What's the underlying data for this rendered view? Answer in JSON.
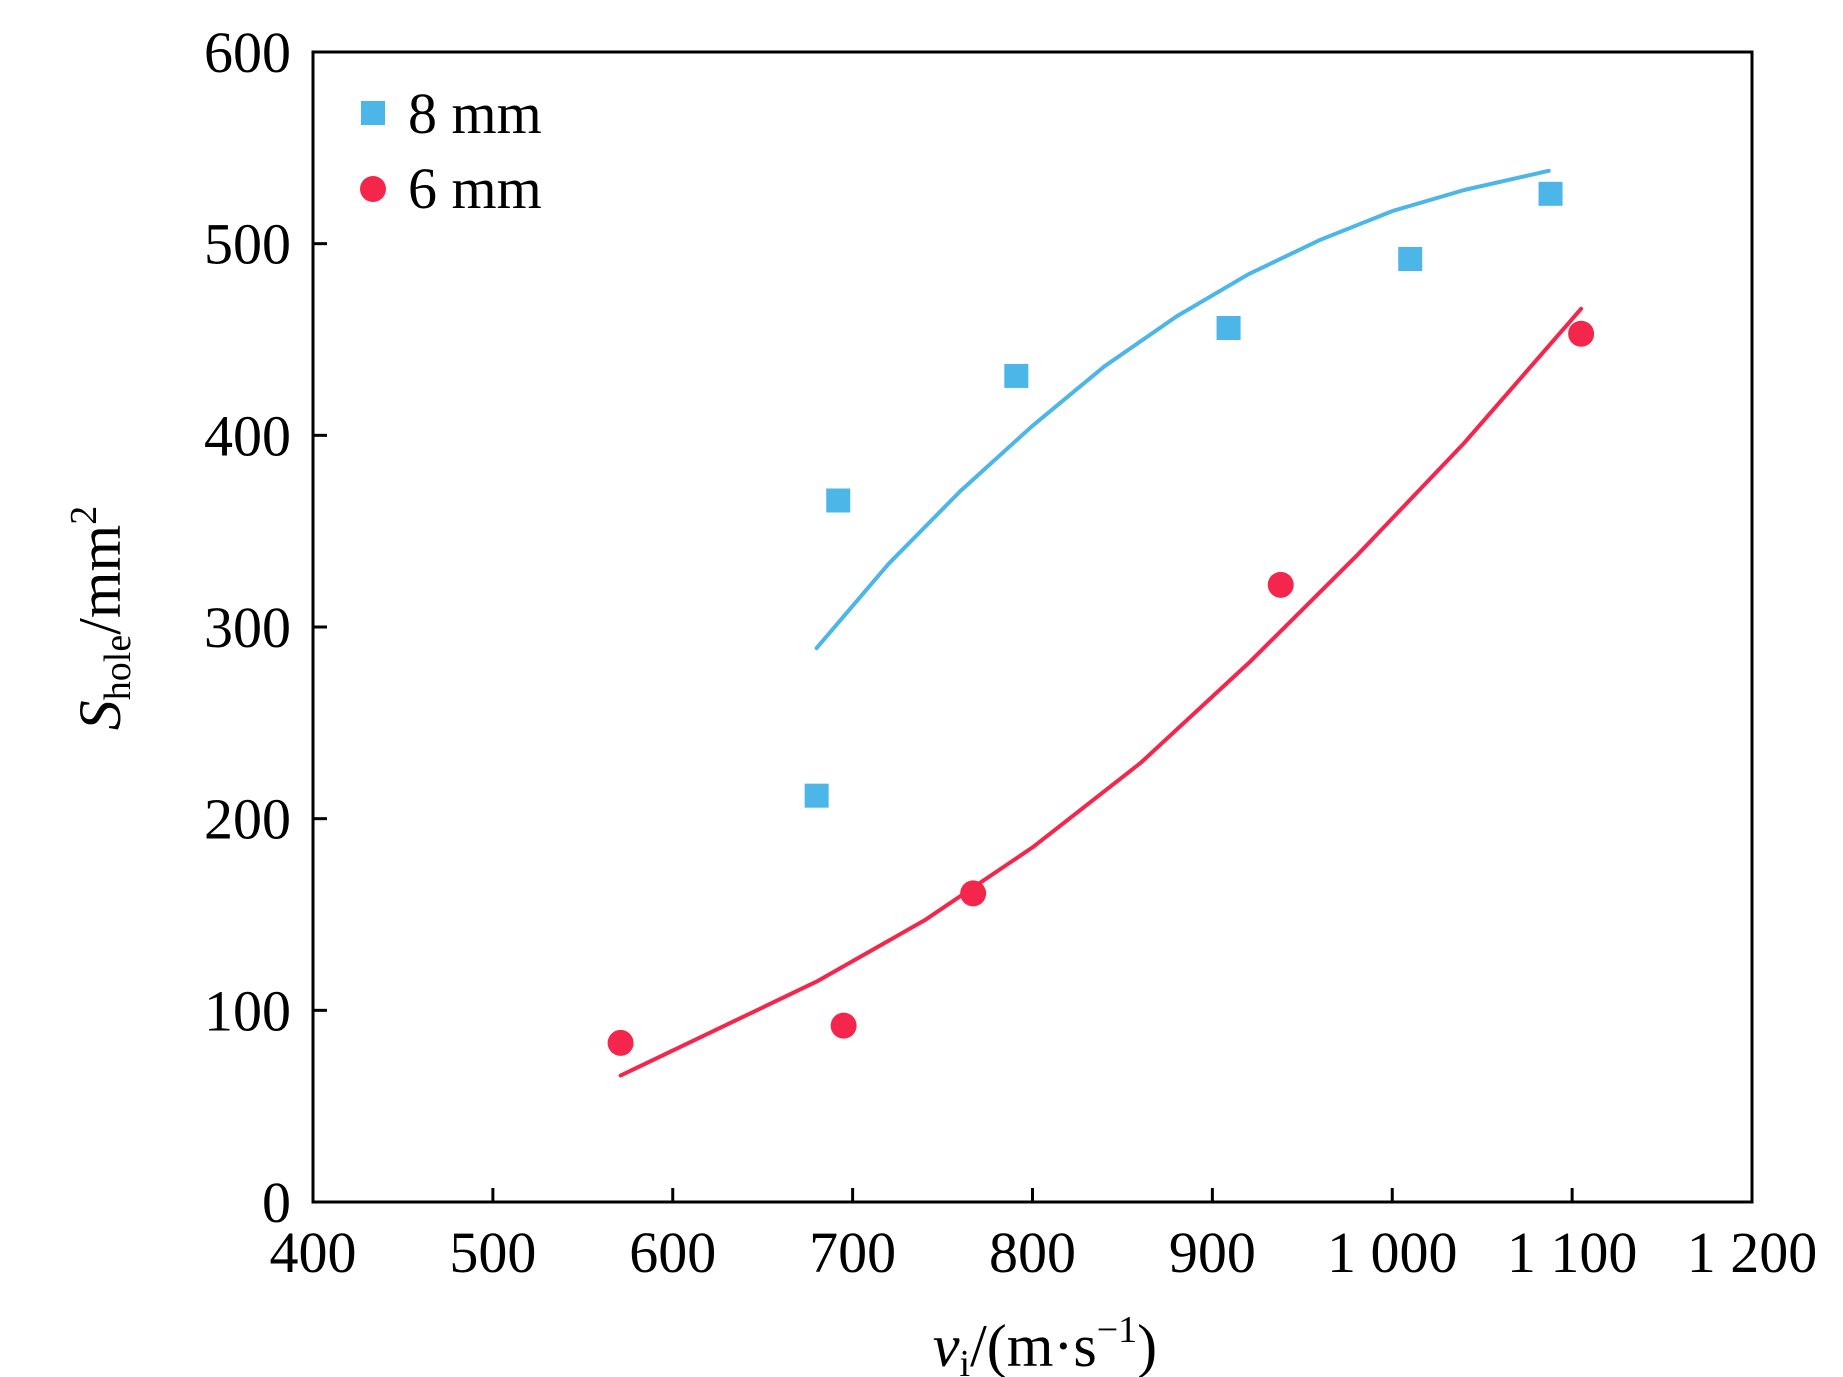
{
  "chart_data": {
    "type": "scatter",
    "xlabel": {
      "main": "v",
      "sub": "i",
      "unit_open": "/(m·s",
      "sup": "−1",
      "unit_close": ")"
    },
    "ylabel": {
      "main": "S",
      "sub": "hole",
      "unit": "/mm",
      "sup": "2"
    },
    "xlim": [
      400,
      1200
    ],
    "ylim": [
      0,
      600
    ],
    "xticks": [
      {
        "value": 400,
        "label": "400"
      },
      {
        "value": 500,
        "label": "500"
      },
      {
        "value": 600,
        "label": "600"
      },
      {
        "value": 700,
        "label": "700"
      },
      {
        "value": 800,
        "label": "800"
      },
      {
        "value": 900,
        "label": "900"
      },
      {
        "value": 1000,
        "label": "1 000"
      },
      {
        "value": 1100,
        "label": "1 100"
      },
      {
        "value": 1200,
        "label": "1 200"
      }
    ],
    "yticks": [
      {
        "value": 0,
        "label": "0"
      },
      {
        "value": 100,
        "label": "100"
      },
      {
        "value": 200,
        "label": "200"
      },
      {
        "value": 300,
        "label": "300"
      },
      {
        "value": 400,
        "label": "400"
      },
      {
        "value": 500,
        "label": "500"
      },
      {
        "value": 600,
        "label": "600"
      }
    ],
    "legend_position": "top-left",
    "series": [
      {
        "name": "8 mm",
        "marker": "square",
        "color": "#4DB6E8",
        "points": [
          {
            "x": 680,
            "y": 212
          },
          {
            "x": 692,
            "y": 366
          },
          {
            "x": 791,
            "y": 431
          },
          {
            "x": 909,
            "y": 456
          },
          {
            "x": 1010,
            "y": 492
          },
          {
            "x": 1088,
            "y": 526
          }
        ],
        "fit": [
          {
            "x": 680,
            "y": 289
          },
          {
            "x": 720,
            "y": 333
          },
          {
            "x": 760,
            "y": 371
          },
          {
            "x": 800,
            "y": 405
          },
          {
            "x": 840,
            "y": 436
          },
          {
            "x": 880,
            "y": 462
          },
          {
            "x": 920,
            "y": 484
          },
          {
            "x": 960,
            "y": 502
          },
          {
            "x": 1000,
            "y": 517
          },
          {
            "x": 1040,
            "y": 528
          },
          {
            "x": 1087,
            "y": 538
          }
        ]
      },
      {
        "name": "6 mm",
        "marker": "circle",
        "color": "#F5264B",
        "points": [
          {
            "x": 571,
            "y": 83
          },
          {
            "x": 695,
            "y": 92
          },
          {
            "x": 767,
            "y": 161
          },
          {
            "x": 938,
            "y": 322
          },
          {
            "x": 1105,
            "y": 453
          }
        ],
        "fit": [
          {
            "x": 571,
            "y": 66
          },
          {
            "x": 620,
            "y": 88
          },
          {
            "x": 680,
            "y": 115
          },
          {
            "x": 740,
            "y": 147
          },
          {
            "x": 800,
            "y": 185
          },
          {
            "x": 860,
            "y": 229
          },
          {
            "x": 920,
            "y": 281
          },
          {
            "x": 980,
            "y": 337
          },
          {
            "x": 1040,
            "y": 396
          },
          {
            "x": 1105,
            "y": 466
          }
        ]
      }
    ]
  }
}
